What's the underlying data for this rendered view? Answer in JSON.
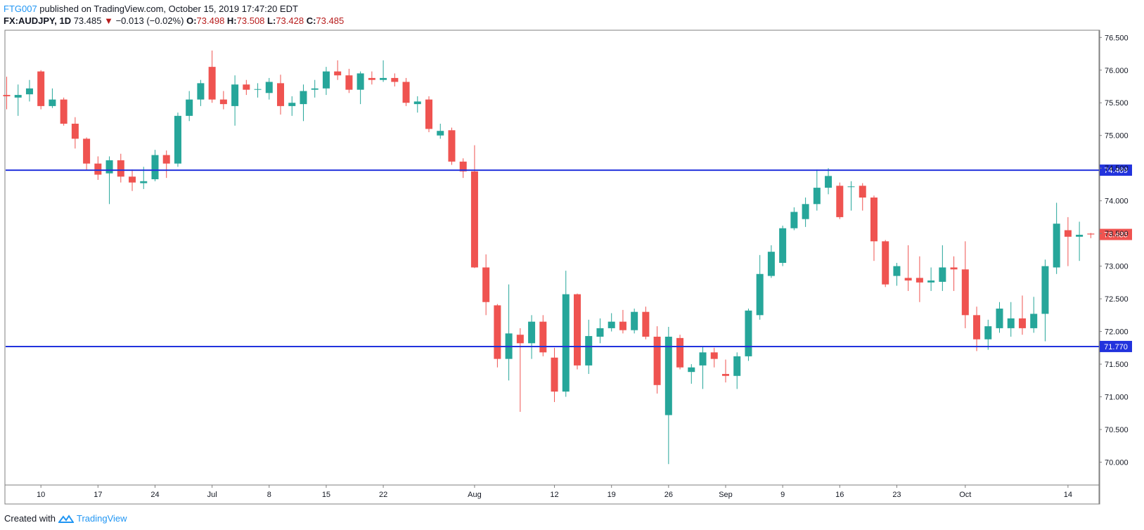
{
  "header": {
    "author": "FTG007",
    "published_text": " published on TradingView.com, October 15, 2019 17:47:20 EDT",
    "symbol": "FX:AUDJPY, 1D",
    "last": "73.485",
    "change": "−0.013 (−0.02%)",
    "o_label": "O:",
    "o_value": "73.498",
    "h_label": "H:",
    "h_value": "73.508",
    "l_label": "L:",
    "l_value": "73.428",
    "c_label": "C:",
    "c_value": "73.485"
  },
  "footer": {
    "created_with": "Created with",
    "brand": "TradingView"
  },
  "colors": {
    "up": "#26a69a",
    "down": "#ef5350",
    "level": "#2233dd",
    "last": "#ef5350"
  },
  "chart_data": {
    "type": "candlestick",
    "symbol": "FX:AUDJPY",
    "interval": "1D",
    "ylim": [
      69.65,
      76.6
    ],
    "y_ticks": [
      "76.500",
      "76.000",
      "75.500",
      "75.000",
      "74.500",
      "74.000",
      "73.500",
      "73.000",
      "72.500",
      "72.000",
      "71.500",
      "71.000",
      "70.500",
      "70.000"
    ],
    "x_ticks": [
      {
        "i": 3,
        "label": "10"
      },
      {
        "i": 8,
        "label": "17"
      },
      {
        "i": 13,
        "label": "24"
      },
      {
        "i": 18,
        "label": "Jul"
      },
      {
        "i": 23,
        "label": "8"
      },
      {
        "i": 28,
        "label": "15"
      },
      {
        "i": 33,
        "label": "22"
      },
      {
        "i": 41,
        "label": "Aug"
      },
      {
        "i": 48,
        "label": "12"
      },
      {
        "i": 53,
        "label": "19"
      },
      {
        "i": 58,
        "label": "26"
      },
      {
        "i": 63,
        "label": "Sep"
      },
      {
        "i": 68,
        "label": "9"
      },
      {
        "i": 73,
        "label": "16"
      },
      {
        "i": 78,
        "label": "23"
      },
      {
        "i": 84,
        "label": "Oct"
      },
      {
        "i": 93,
        "label": "14"
      }
    ],
    "horizontal_levels": [
      {
        "value": 74.469,
        "label": "74.469"
      },
      {
        "value": 71.77,
        "label": "71.770"
      }
    ],
    "last_price": {
      "value": 73.485,
      "label": "73.485"
    },
    "candles": [
      [
        75.62,
        75.6,
        75.9,
        75.4
      ],
      [
        75.58,
        75.62,
        75.78,
        75.3
      ],
      [
        75.63,
        75.72,
        75.85,
        75.52
      ],
      [
        75.98,
        75.45,
        76.0,
        75.4
      ],
      [
        75.45,
        75.55,
        75.72,
        75.42
      ],
      [
        75.55,
        75.18,
        75.58,
        75.15
      ],
      [
        75.18,
        74.95,
        75.28,
        74.8
      ],
      [
        74.95,
        74.57,
        74.97,
        74.47
      ],
      [
        74.57,
        74.4,
        74.68,
        74.32
      ],
      [
        74.42,
        74.62,
        74.68,
        73.95
      ],
      [
        74.62,
        74.37,
        74.72,
        74.28
      ],
      [
        74.37,
        74.28,
        74.48,
        74.15
      ],
      [
        74.27,
        74.3,
        74.52,
        74.18
      ],
      [
        74.33,
        74.7,
        74.78,
        74.3
      ],
      [
        74.7,
        74.57,
        74.77,
        74.35
      ],
      [
        74.57,
        75.3,
        75.35,
        74.52
      ],
      [
        75.3,
        75.55,
        75.68,
        75.22
      ],
      [
        75.55,
        75.8,
        75.85,
        75.45
      ],
      [
        76.05,
        75.55,
        76.3,
        75.5
      ],
      [
        75.55,
        75.48,
        75.68,
        75.4
      ],
      [
        75.45,
        75.78,
        75.92,
        75.15
      ],
      [
        75.78,
        75.7,
        75.85,
        75.62
      ],
      [
        75.7,
        75.71,
        75.8,
        75.58
      ],
      [
        75.65,
        75.82,
        75.88,
        75.55
      ],
      [
        75.8,
        75.45,
        75.93,
        75.32
      ],
      [
        75.45,
        75.5,
        75.6,
        75.3
      ],
      [
        75.48,
        75.68,
        75.78,
        75.22
      ],
      [
        75.7,
        75.72,
        75.85,
        75.58
      ],
      [
        75.72,
        75.98,
        76.05,
        75.62
      ],
      [
        75.98,
        75.92,
        76.15,
        75.85
      ],
      [
        75.92,
        75.7,
        76.02,
        75.65
      ],
      [
        75.7,
        75.95,
        75.98,
        75.48
      ],
      [
        75.88,
        75.85,
        75.98,
        75.78
      ],
      [
        75.85,
        75.88,
        76.15,
        75.82
      ],
      [
        75.88,
        75.82,
        75.95,
        75.75
      ],
      [
        75.82,
        75.5,
        75.88,
        75.45
      ],
      [
        75.48,
        75.52,
        75.6,
        75.35
      ],
      [
        75.55,
        75.1,
        75.6,
        75.05
      ],
      [
        75.0,
        75.07,
        75.18,
        74.95
      ],
      [
        75.08,
        74.6,
        75.12,
        74.55
      ],
      [
        74.6,
        74.45,
        74.65,
        74.35
      ],
      [
        74.45,
        72.98,
        74.85,
        72.97
      ],
      [
        72.98,
        72.45,
        73.18,
        72.25
      ],
      [
        72.4,
        71.58,
        72.42,
        71.45
      ],
      [
        71.58,
        71.97,
        72.72,
        71.25
      ],
      [
        71.95,
        71.82,
        72.05,
        70.77
      ],
      [
        71.82,
        72.15,
        72.25,
        71.58
      ],
      [
        72.15,
        71.68,
        72.25,
        71.62
      ],
      [
        71.6,
        71.08,
        71.75,
        70.92
      ],
      [
        71.08,
        72.57,
        72.93,
        71.0
      ],
      [
        72.57,
        71.48,
        72.58,
        71.42
      ],
      [
        71.48,
        71.93,
        72.18,
        71.35
      ],
      [
        71.92,
        72.05,
        72.2,
        71.82
      ],
      [
        72.05,
        72.15,
        72.28,
        72.0
      ],
      [
        72.15,
        72.02,
        72.33,
        71.97
      ],
      [
        72.02,
        72.3,
        72.35,
        71.97
      ],
      [
        72.3,
        71.92,
        72.38,
        71.88
      ],
      [
        71.92,
        71.18,
        72.08,
        71.05
      ],
      [
        70.72,
        71.92,
        72.07,
        69.97
      ],
      [
        71.9,
        71.45,
        71.95,
        71.42
      ],
      [
        71.38,
        71.45,
        71.5,
        71.2
      ],
      [
        71.48,
        71.68,
        71.78,
        71.12
      ],
      [
        71.68,
        71.58,
        71.75,
        71.45
      ],
      [
        71.35,
        71.32,
        71.57,
        71.22
      ],
      [
        71.32,
        71.62,
        71.68,
        71.12
      ],
      [
        71.62,
        72.32,
        72.35,
        71.55
      ],
      [
        72.25,
        72.88,
        73.17,
        72.18
      ],
      [
        72.85,
        73.22,
        73.32,
        72.82
      ],
      [
        73.05,
        73.58,
        73.62,
        73.0
      ],
      [
        73.58,
        73.83,
        73.9,
        73.55
      ],
      [
        73.72,
        73.95,
        74.05,
        73.6
      ],
      [
        73.95,
        74.2,
        74.48,
        73.85
      ],
      [
        74.2,
        74.38,
        74.5,
        74.1
      ],
      [
        74.23,
        73.75,
        74.28,
        73.72
      ],
      [
        74.21,
        74.22,
        74.3,
        73.85
      ],
      [
        74.23,
        74.05,
        74.27,
        73.85
      ],
      [
        74.05,
        73.38,
        74.08,
        73.08
      ],
      [
        73.38,
        72.72,
        73.4,
        72.68
      ],
      [
        72.85,
        73.0,
        73.05,
        72.7
      ],
      [
        72.82,
        72.78,
        73.32,
        72.62
      ],
      [
        72.82,
        72.75,
        73.15,
        72.45
      ],
      [
        72.75,
        72.78,
        72.98,
        72.62
      ],
      [
        72.76,
        72.98,
        73.32,
        72.62
      ],
      [
        72.98,
        72.95,
        73.15,
        72.62
      ],
      [
        72.95,
        72.25,
        73.38,
        72.05
      ],
      [
        72.25,
        71.88,
        72.38,
        71.7
      ],
      [
        71.88,
        72.08,
        72.18,
        71.72
      ],
      [
        72.05,
        72.35,
        72.45,
        71.98
      ],
      [
        72.05,
        72.2,
        72.45,
        71.92
      ],
      [
        72.2,
        72.05,
        72.55,
        71.95
      ],
      [
        72.05,
        72.27,
        72.53,
        71.98
      ],
      [
        72.27,
        73.0,
        73.1,
        71.85
      ],
      [
        72.98,
        73.65,
        73.97,
        72.88
      ],
      [
        73.55,
        73.45,
        73.75,
        73.0
      ],
      [
        73.45,
        73.48,
        73.68,
        73.08
      ],
      [
        73.498,
        73.485,
        73.508,
        73.428
      ]
    ]
  }
}
